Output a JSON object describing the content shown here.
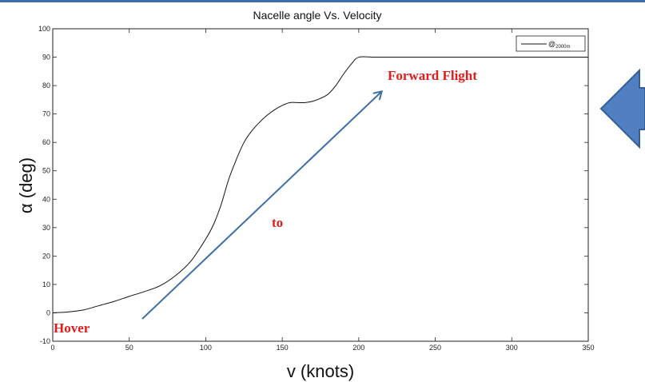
{
  "chart_data": {
    "type": "line",
    "title": "Nacelle angle Vs. Velocity",
    "xlabel": "v (knots)",
    "ylabel": "α (deg)",
    "xlim": [
      0,
      350
    ],
    "ylim": [
      -10,
      100
    ],
    "xticks": [
      0,
      50,
      100,
      150,
      200,
      250,
      300,
      350
    ],
    "yticks": [
      -10,
      0,
      10,
      20,
      30,
      40,
      50,
      60,
      70,
      80,
      90,
      100
    ],
    "grid": false,
    "legend": {
      "position": "top-right",
      "entry": "@",
      "entry_sub": "2000m"
    },
    "series": [
      {
        "name": "@2000m",
        "color": "#111111",
        "x": [
          0,
          10,
          20,
          30,
          40,
          50,
          60,
          70,
          80,
          90,
          100,
          105,
          110,
          115,
          120,
          125,
          130,
          135,
          140,
          145,
          150,
          155,
          160,
          165,
          170,
          175,
          180,
          185,
          190,
          195,
          200,
          210,
          220,
          250,
          300,
          350
        ],
        "y": [
          0,
          0.3,
          1,
          2.5,
          4,
          5.8,
          7.5,
          9.5,
          13,
          18,
          26,
          31,
          38,
          47,
          54,
          60,
          64,
          67,
          69.5,
          71.5,
          73,
          74,
          74,
          74,
          74.5,
          75.5,
          77,
          80,
          84,
          87.5,
          90,
          90,
          90,
          90,
          90,
          90
        ]
      }
    ],
    "annotations": [
      {
        "text": "Hover",
        "color": "#e31b1b"
      },
      {
        "text": "to",
        "color": "#e31b1b"
      },
      {
        "text": "Forward Flight",
        "color": "#e31b1b"
      }
    ],
    "arrow_color": "#3f6fa8"
  }
}
